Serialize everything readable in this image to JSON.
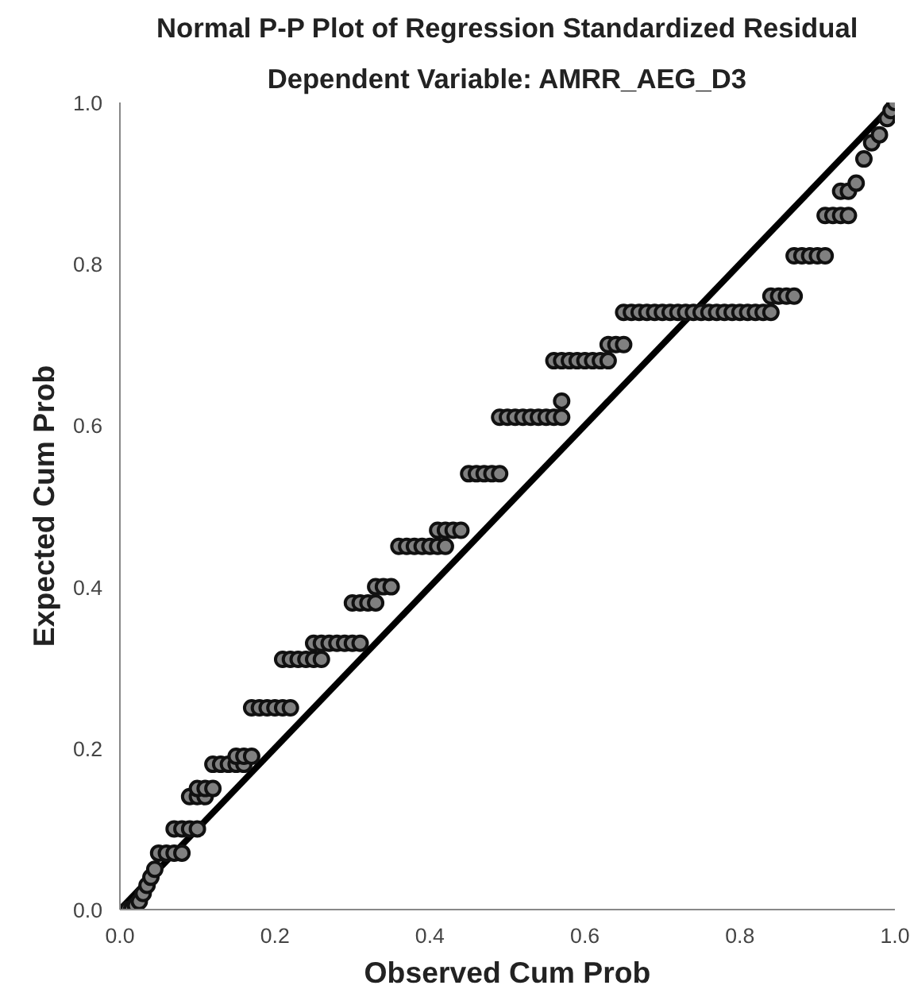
{
  "chart_data": {
    "type": "scatter",
    "title": "Normal P-P Plot of Regression Standardized Residual",
    "subtitle": "Dependent Variable: AMRR_AEG_D3",
    "xlabel": "Observed Cum Prob",
    "ylabel": "Expected Cum Prob",
    "xlim": [
      0,
      1
    ],
    "ylim": [
      0,
      1
    ],
    "xticks": [
      {
        "value": 0,
        "label": "0.0"
      },
      {
        "value": 0.2,
        "label": "0.2"
      },
      {
        "value": 0.4,
        "label": "0.4"
      },
      {
        "value": 0.6,
        "label": "0.6"
      },
      {
        "value": 0.8,
        "label": "0.8"
      },
      {
        "value": 1,
        "label": "1.0"
      }
    ],
    "yticks": [
      {
        "value": 0,
        "label": "0.0"
      },
      {
        "value": 0.2,
        "label": "0.2"
      },
      {
        "value": 0.4,
        "label": "0.4"
      },
      {
        "value": 0.6,
        "label": "0.6"
      },
      {
        "value": 0.8,
        "label": "0.8"
      },
      {
        "value": 1,
        "label": "1.0"
      }
    ],
    "grid": false,
    "series": [
      {
        "type": "line",
        "marker": "none",
        "color": "#000000",
        "x": [
          0,
          1
        ],
        "values": [
          0,
          1
        ]
      },
      {
        "marker": "circle",
        "color": "#808080",
        "x": [
          0.01,
          0.015,
          0.02,
          0.025,
          0.03,
          0.035,
          0.04,
          0.045,
          0.05,
          0.06,
          0.07,
          0.08,
          0.07,
          0.08,
          0.09,
          0.1,
          0.09,
          0.1,
          0.11,
          0.1,
          0.11,
          0.12,
          0.12,
          0.13,
          0.14,
          0.15,
          0.16,
          0.15,
          0.16,
          0.17,
          0.17,
          0.18,
          0.19,
          0.2,
          0.21,
          0.22,
          0.21,
          0.22,
          0.23,
          0.24,
          0.25,
          0.26,
          0.25,
          0.26,
          0.27,
          0.28,
          0.29,
          0.3,
          0.31,
          0.3,
          0.31,
          0.32,
          0.33,
          0.33,
          0.34,
          0.35,
          0.36,
          0.37,
          0.38,
          0.39,
          0.4,
          0.41,
          0.42,
          0.41,
          0.42,
          0.43,
          0.44,
          0.45,
          0.46,
          0.47,
          0.48,
          0.49,
          0.49,
          0.5,
          0.51,
          0.52,
          0.53,
          0.54,
          0.55,
          0.56,
          0.57,
          0.57,
          0.56,
          0.57,
          0.58,
          0.59,
          0.6,
          0.61,
          0.62,
          0.63,
          0.63,
          0.64,
          0.65,
          0.65,
          0.66,
          0.67,
          0.68,
          0.69,
          0.7,
          0.71,
          0.72,
          0.73,
          0.74,
          0.75,
          0.76,
          0.77,
          0.78,
          0.79,
          0.8,
          0.81,
          0.82,
          0.83,
          0.84,
          0.84,
          0.85,
          0.86,
          0.87,
          0.87,
          0.88,
          0.89,
          0.9,
          0.91,
          0.91,
          0.92,
          0.93,
          0.94,
          0.93,
          0.94,
          0.95,
          0.96,
          0.97,
          0.98,
          0.99,
          0.995,
          1.0
        ],
        "values": [
          0.0,
          0.0,
          0.005,
          0.01,
          0.02,
          0.03,
          0.04,
          0.05,
          0.07,
          0.07,
          0.07,
          0.07,
          0.1,
          0.1,
          0.1,
          0.1,
          0.14,
          0.14,
          0.14,
          0.15,
          0.15,
          0.15,
          0.18,
          0.18,
          0.18,
          0.18,
          0.18,
          0.19,
          0.19,
          0.19,
          0.25,
          0.25,
          0.25,
          0.25,
          0.25,
          0.25,
          0.31,
          0.31,
          0.31,
          0.31,
          0.31,
          0.31,
          0.33,
          0.33,
          0.33,
          0.33,
          0.33,
          0.33,
          0.33,
          0.38,
          0.38,
          0.38,
          0.38,
          0.4,
          0.4,
          0.4,
          0.45,
          0.45,
          0.45,
          0.45,
          0.45,
          0.45,
          0.45,
          0.47,
          0.47,
          0.47,
          0.47,
          0.54,
          0.54,
          0.54,
          0.54,
          0.54,
          0.61,
          0.61,
          0.61,
          0.61,
          0.61,
          0.61,
          0.61,
          0.61,
          0.61,
          0.63,
          0.68,
          0.68,
          0.68,
          0.68,
          0.68,
          0.68,
          0.68,
          0.68,
          0.7,
          0.7,
          0.7,
          0.74,
          0.74,
          0.74,
          0.74,
          0.74,
          0.74,
          0.74,
          0.74,
          0.74,
          0.74,
          0.74,
          0.74,
          0.74,
          0.74,
          0.74,
          0.74,
          0.74,
          0.74,
          0.74,
          0.74,
          0.76,
          0.76,
          0.76,
          0.76,
          0.81,
          0.81,
          0.81,
          0.81,
          0.81,
          0.86,
          0.86,
          0.86,
          0.86,
          0.89,
          0.89,
          0.9,
          0.93,
          0.95,
          0.96,
          0.98,
          0.99,
          1.0
        ]
      }
    ]
  }
}
